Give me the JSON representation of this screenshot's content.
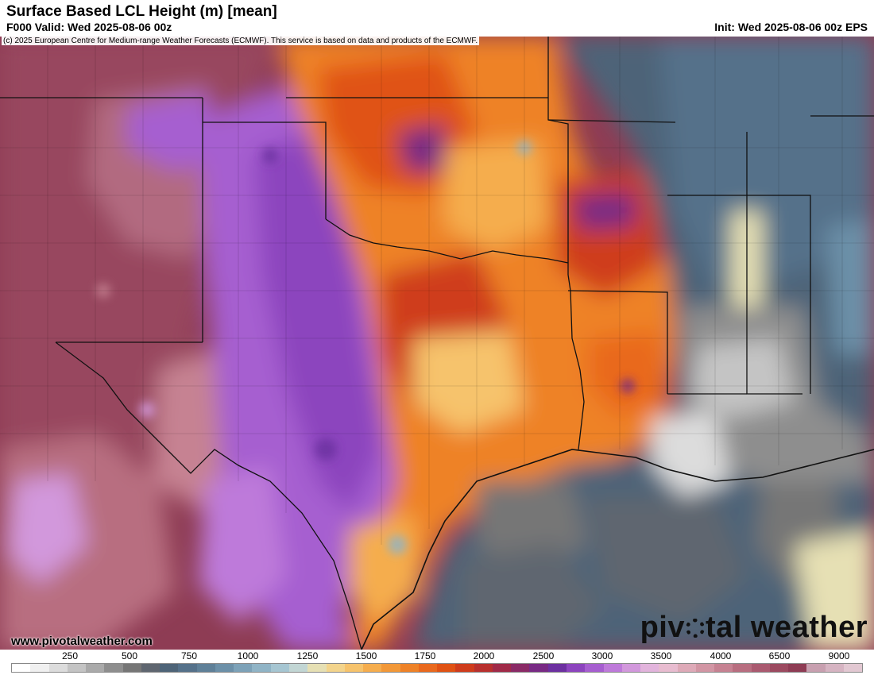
{
  "header": {
    "title": "Surface Based LCL Height (m) [mean]",
    "valid": "F000 Valid: Wed 2025-08-06 00z",
    "init": "Init: Wed 2025-08-06 00z EPS"
  },
  "map": {
    "copyright": "(c) 2025 European Centre for Medium-range Weather Forecasts (ECMWF). This service is based on data and products of the ECMWF.",
    "website": "www.pivotalweather.com",
    "brand_left": "piv",
    "brand_right": "tal weather",
    "brand_icon": "gear-o-icon"
  },
  "colorbar": {
    "labels": [
      "250",
      "500",
      "750",
      "1000",
      "1250",
      "1500",
      "1750",
      "2000",
      "2500",
      "3000",
      "3500",
      "4000",
      "6500",
      "9000"
    ],
    "colors": [
      "#ffffff",
      "#f0f0f0",
      "#dcdcdc",
      "#c4c4c4",
      "#aaaaaa",
      "#8e8e8e",
      "#767676",
      "#5f6670",
      "#4e6478",
      "#55718a",
      "#5f8098",
      "#6c90a8",
      "#7da2b8",
      "#90b4c6",
      "#a6c6d2",
      "#c2d6d4",
      "#e6e0b4",
      "#f3d48c",
      "#f6c36c",
      "#f5ad4e",
      "#f29838",
      "#ee8228",
      "#e9691e",
      "#e05214",
      "#cf3c1c",
      "#b8302e",
      "#a02a48",
      "#8a2a66",
      "#782a84",
      "#6c30a0",
      "#8c44be",
      "#a65ed0",
      "#be7ada",
      "#d298dc",
      "#e2b4dc",
      "#e8bcd0",
      "#deaab8",
      "#d296a4",
      "#c68292",
      "#b86e80",
      "#aa5a70",
      "#9c4a60",
      "#8e3c54",
      "#c8a0b0",
      "#d6b4c2",
      "#e2c8d2"
    ]
  }
}
